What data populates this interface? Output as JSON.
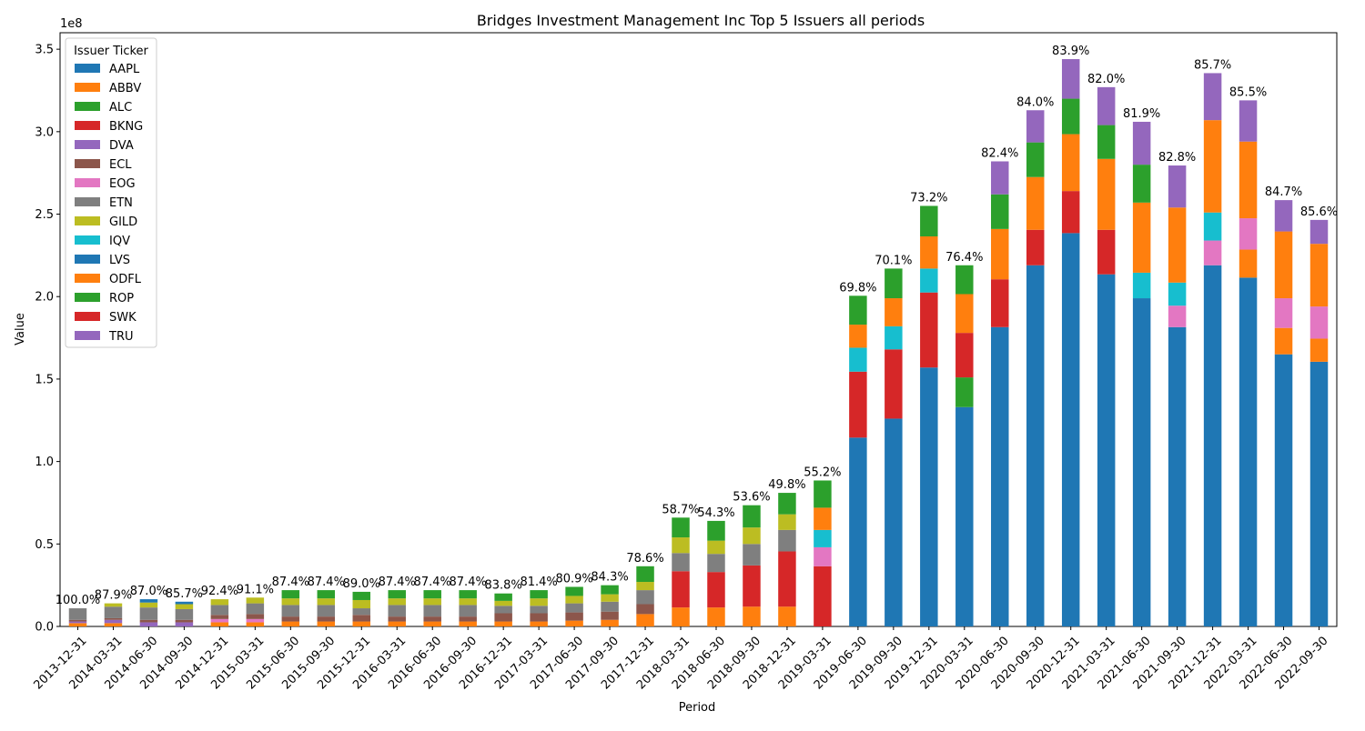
{
  "chart_data": {
    "type": "bar",
    "stacked": true,
    "title": "Bridges Investment Management Inc Top 5 Issuers all periods",
    "xlabel": "Period",
    "ylabel": "Value",
    "y_offset_label": "1e8",
    "ylim": [
      0,
      3.6
    ],
    "y_ticks": [
      "0.0",
      "0.5",
      "1.0",
      "1.5",
      "2.0",
      "2.5",
      "3.0",
      "3.5"
    ],
    "legend": {
      "title": "Issuer Ticker",
      "position": "top-left"
    },
    "series": [
      {
        "name": "AAPL",
        "color": "#1f77b4"
      },
      {
        "name": "ABBV",
        "color": "#ff7f0e"
      },
      {
        "name": "ALC",
        "color": "#2ca02c"
      },
      {
        "name": "BKNG",
        "color": "#d62728"
      },
      {
        "name": "DVA",
        "color": "#9467bd"
      },
      {
        "name": "ECL",
        "color": "#8c564b"
      },
      {
        "name": "EOG",
        "color": "#e377c2"
      },
      {
        "name": "ETN",
        "color": "#7f7f7f"
      },
      {
        "name": "GILD",
        "color": "#bcbd22"
      },
      {
        "name": "IQV",
        "color": "#17becf"
      },
      {
        "name": "LVS",
        "color": "#1f77b4"
      },
      {
        "name": "ODFL",
        "color": "#ff7f0e"
      },
      {
        "name": "ROP",
        "color": "#2ca02c"
      },
      {
        "name": "SWK",
        "color": "#d62728"
      },
      {
        "name": "TRU",
        "color": "#9467bd"
      }
    ],
    "periods": [
      {
        "label": "2013-12-31",
        "pct": "100.0%",
        "stack": [
          [
            "ABBV",
            0.02
          ],
          [
            "DVA",
            0.01
          ],
          [
            "ECL",
            0.01
          ],
          [
            "ETN",
            0.07
          ]
        ]
      },
      {
        "label": "2014-03-31",
        "pct": "87.9%",
        "stack": [
          [
            "ABBV",
            0.02
          ],
          [
            "DVA",
            0.02
          ],
          [
            "ECL",
            0.01
          ],
          [
            "ETN",
            0.07
          ],
          [
            "GILD",
            0.02
          ]
        ]
      },
      {
        "label": "2014-06-30",
        "pct": "87.0%",
        "stack": [
          [
            "DVA",
            0.025
          ],
          [
            "ECL",
            0.015
          ],
          [
            "ETN",
            0.075
          ],
          [
            "GILD",
            0.03
          ],
          [
            "LVS",
            0.02
          ]
        ]
      },
      {
        "label": "2014-09-30",
        "pct": "85.7%",
        "stack": [
          [
            "DVA",
            0.025
          ],
          [
            "ECL",
            0.015
          ],
          [
            "ETN",
            0.065
          ],
          [
            "GILD",
            0.03
          ],
          [
            "LVS",
            0.015
          ]
        ]
      },
      {
        "label": "2014-12-31",
        "pct": "92.4%",
        "stack": [
          [
            "ABBV",
            0.025
          ],
          [
            "EOG",
            0.02
          ],
          [
            "ECL",
            0.025
          ],
          [
            "ETN",
            0.06
          ],
          [
            "GILD",
            0.035
          ]
        ]
      },
      {
        "label": "2015-03-31",
        "pct": "91.1%",
        "stack": [
          [
            "ABBV",
            0.025
          ],
          [
            "EOG",
            0.02
          ],
          [
            "ECL",
            0.03
          ],
          [
            "ETN",
            0.065
          ],
          [
            "GILD",
            0.035
          ]
        ]
      },
      {
        "label": "2015-06-30",
        "pct": "87.4%",
        "stack": [
          [
            "ABBV",
            0.03
          ],
          [
            "ECL",
            0.03
          ],
          [
            "ETN",
            0.07
          ],
          [
            "GILD",
            0.04
          ],
          [
            "ROP",
            0.05
          ]
        ]
      },
      {
        "label": "2015-09-30",
        "pct": "87.4%",
        "stack": [
          [
            "ABBV",
            0.03
          ],
          [
            "ECL",
            0.03
          ],
          [
            "ETN",
            0.07
          ],
          [
            "GILD",
            0.04
          ],
          [
            "ROP",
            0.05
          ]
        ]
      },
      {
        "label": "2015-12-31",
        "pct": "89.0%",
        "stack": [
          [
            "ABBV",
            0.03
          ],
          [
            "ECL",
            0.04
          ],
          [
            "ETN",
            0.04
          ],
          [
            "GILD",
            0.05
          ],
          [
            "ROP",
            0.05
          ]
        ]
      },
      {
        "label": "2016-03-31",
        "pct": "87.4%",
        "stack": [
          [
            "ABBV",
            0.03
          ],
          [
            "ECL",
            0.03
          ],
          [
            "ETN",
            0.07
          ],
          [
            "GILD",
            0.04
          ],
          [
            "ROP",
            0.05
          ]
        ]
      },
      {
        "label": "2016-06-30",
        "pct": "87.4%",
        "stack": [
          [
            "ABBV",
            0.03
          ],
          [
            "ECL",
            0.03
          ],
          [
            "ETN",
            0.07
          ],
          [
            "GILD",
            0.04
          ],
          [
            "ROP",
            0.05
          ]
        ]
      },
      {
        "label": "2016-09-30",
        "pct": "87.4%",
        "stack": [
          [
            "ABBV",
            0.03
          ],
          [
            "ECL",
            0.03
          ],
          [
            "ETN",
            0.07
          ],
          [
            "GILD",
            0.04
          ],
          [
            "ROP",
            0.05
          ]
        ]
      },
      {
        "label": "2016-12-31",
        "pct": "83.8%",
        "stack": [
          [
            "ABBV",
            0.03
          ],
          [
            "ECL",
            0.05
          ],
          [
            "ETN",
            0.045
          ],
          [
            "GILD",
            0.03
          ],
          [
            "ROP",
            0.045
          ]
        ]
      },
      {
        "label": "2017-03-31",
        "pct": "81.4%",
        "stack": [
          [
            "ABBV",
            0.03
          ],
          [
            "ECL",
            0.05
          ],
          [
            "ETN",
            0.045
          ],
          [
            "GILD",
            0.045
          ],
          [
            "ROP",
            0.05
          ]
        ]
      },
      {
        "label": "2017-06-30",
        "pct": "80.9%",
        "stack": [
          [
            "ABBV",
            0.035
          ],
          [
            "ECL",
            0.05
          ],
          [
            "ETN",
            0.055
          ],
          [
            "GILD",
            0.045
          ],
          [
            "ROP",
            0.055
          ]
        ]
      },
      {
        "label": "2017-09-30",
        "pct": "84.3%",
        "stack": [
          [
            "ABBV",
            0.04
          ],
          [
            "ECL",
            0.05
          ],
          [
            "ETN",
            0.06
          ],
          [
            "GILD",
            0.045
          ],
          [
            "ROP",
            0.055
          ]
        ]
      },
      {
        "label": "2017-12-31",
        "pct": "78.6%",
        "stack": [
          [
            "ABBV",
            0.075
          ],
          [
            "ECL",
            0.06
          ],
          [
            "ETN",
            0.085
          ],
          [
            "GILD",
            0.05
          ],
          [
            "ROP",
            0.095
          ]
        ]
      },
      {
        "label": "2018-03-31",
        "pct": "58.7%",
        "stack": [
          [
            "ABBV",
            0.115
          ],
          [
            "BKNG",
            0.22
          ],
          [
            "ETN",
            0.11
          ],
          [
            "GILD",
            0.095
          ],
          [
            "ROP",
            0.12
          ]
        ]
      },
      {
        "label": "2018-06-30",
        "pct": "54.3%",
        "stack": [
          [
            "ABBV",
            0.115
          ],
          [
            "BKNG",
            0.215
          ],
          [
            "ETN",
            0.11
          ],
          [
            "GILD",
            0.08
          ],
          [
            "ROP",
            0.12
          ]
        ]
      },
      {
        "label": "2018-09-30",
        "pct": "53.6%",
        "stack": [
          [
            "ABBV",
            0.12
          ],
          [
            "BKNG",
            0.25
          ],
          [
            "ETN",
            0.13
          ],
          [
            "GILD",
            0.1
          ],
          [
            "ROP",
            0.135
          ]
        ]
      },
      {
        "label": "2018-12-31",
        "pct": "49.8%",
        "stack": [
          [
            "ABBV",
            0.12
          ],
          [
            "BKNG",
            0.335
          ],
          [
            "ETN",
            0.13
          ],
          [
            "GILD",
            0.095
          ],
          [
            "ROP",
            0.13
          ]
        ]
      },
      {
        "label": "2019-03-31",
        "pct": "55.2%",
        "stack": [
          [
            "BKNG",
            0.365
          ],
          [
            "EOG",
            0.115
          ],
          [
            "IQV",
            0.105
          ],
          [
            "ODFL",
            0.135
          ],
          [
            "ROP",
            0.165
          ]
        ]
      },
      {
        "label": "2019-06-30",
        "pct": "69.8%",
        "stack": [
          [
            "AAPL",
            1.145
          ],
          [
            "BKNG",
            0.4
          ],
          [
            "IQV",
            0.145
          ],
          [
            "ODFL",
            0.14
          ],
          [
            "ROP",
            0.175
          ]
        ]
      },
      {
        "label": "2019-09-30",
        "pct": "70.1%",
        "stack": [
          [
            "AAPL",
            1.26
          ],
          [
            "BKNG",
            0.42
          ],
          [
            "IQV",
            0.14
          ],
          [
            "ODFL",
            0.17
          ],
          [
            "ROP",
            0.18
          ]
        ]
      },
      {
        "label": "2019-12-31",
        "pct": "73.2%",
        "stack": [
          [
            "AAPL",
            1.57
          ],
          [
            "BKNG",
            0.455
          ],
          [
            "IQV",
            0.145
          ],
          [
            "ODFL",
            0.195
          ],
          [
            "ROP",
            0.185
          ]
        ]
      },
      {
        "label": "2020-03-31",
        "pct": "76.4%",
        "stack": [
          [
            "AAPL",
            1.33
          ],
          [
            "ALC",
            0.18
          ],
          [
            "BKNG",
            0.27
          ],
          [
            "ODFL",
            0.235
          ],
          [
            "ROP",
            0.175
          ]
        ]
      },
      {
        "label": "2020-06-30",
        "pct": "82.4%",
        "stack": [
          [
            "AAPL",
            1.815
          ],
          [
            "BKNG",
            0.29
          ],
          [
            "ODFL",
            0.305
          ],
          [
            "ROP",
            0.21
          ],
          [
            "DVA",
            0.2
          ]
        ]
      },
      {
        "label": "2020-09-30",
        "pct": "84.0%",
        "stack": [
          [
            "AAPL",
            2.19
          ],
          [
            "BKNG",
            0.215
          ],
          [
            "ODFL",
            0.32
          ],
          [
            "ROP",
            0.21
          ],
          [
            "DVA",
            0.195
          ]
        ]
      },
      {
        "label": "2020-12-31",
        "pct": "83.9%",
        "stack": [
          [
            "AAPL",
            2.385
          ],
          [
            "BKNG",
            0.255
          ],
          [
            "ODFL",
            0.345
          ],
          [
            "ROP",
            0.215
          ],
          [
            "DVA",
            0.24
          ]
        ]
      },
      {
        "label": "2021-03-31",
        "pct": "82.0%",
        "stack": [
          [
            "AAPL",
            2.135
          ],
          [
            "BKNG",
            0.27
          ],
          [
            "ODFL",
            0.43
          ],
          [
            "ROP",
            0.205
          ],
          [
            "DVA",
            0.23
          ]
        ]
      },
      {
        "label": "2021-06-30",
        "pct": "81.9%",
        "stack": [
          [
            "AAPL",
            1.99
          ],
          [
            "IQV",
            0.155
          ],
          [
            "ODFL",
            0.425
          ],
          [
            "ROP",
            0.23
          ],
          [
            "DVA",
            0.26
          ]
        ]
      },
      {
        "label": "2021-09-30",
        "pct": "82.8%",
        "stack": [
          [
            "AAPL",
            1.815
          ],
          [
            "EOG",
            0.13
          ],
          [
            "IQV",
            0.14
          ],
          [
            "ODFL",
            0.455
          ],
          [
            "DVA",
            0.255
          ]
        ]
      },
      {
        "label": "2021-12-31",
        "pct": "85.7%",
        "stack": [
          [
            "AAPL",
            2.19
          ],
          [
            "EOG",
            0.15
          ],
          [
            "IQV",
            0.17
          ],
          [
            "ODFL",
            0.56
          ],
          [
            "DVA",
            0.285
          ]
        ]
      },
      {
        "label": "2022-03-31",
        "pct": "85.5%",
        "stack": [
          [
            "AAPL",
            2.115
          ],
          [
            "ODFL",
            0.17
          ],
          [
            "EOG",
            0.19
          ],
          [
            "ODFL",
            0.465
          ],
          [
            "DVA",
            0.25
          ]
        ]
      },
      {
        "label": "2022-06-30",
        "pct": "84.7%",
        "stack": [
          [
            "AAPL",
            1.65
          ],
          [
            "ODFL",
            0.16
          ],
          [
            "EOG",
            0.18
          ],
          [
            "ODFL",
            0.405
          ],
          [
            "DVA",
            0.19
          ]
        ]
      },
      {
        "label": "2022-09-30",
        "pct": "85.6%",
        "stack": [
          [
            "AAPL",
            1.605
          ],
          [
            "ODFL",
            0.14
          ],
          [
            "EOG",
            0.195
          ],
          [
            "ODFL",
            0.38
          ],
          [
            "DVA",
            0.145
          ]
        ]
      }
    ]
  }
}
